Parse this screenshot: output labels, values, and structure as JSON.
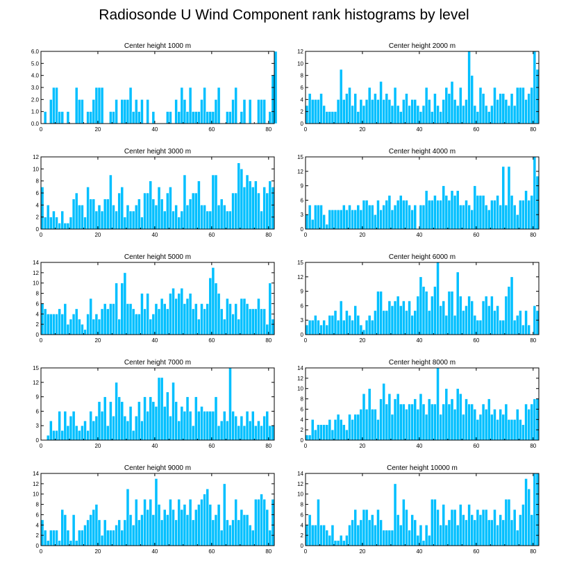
{
  "figure_title": "Radiosonde U Wind Component rank histograms by level",
  "colors": {
    "bar": "#00bfff",
    "bar_edge": "#ffffff",
    "axis": "#000000"
  },
  "chart_data": [
    {
      "type": "bar",
      "title": "Center height 1000 m",
      "xlim": [
        0,
        82
      ],
      "ylim": [
        0,
        6.0
      ],
      "xticks": [
        0,
        20,
        40,
        60,
        80
      ],
      "yticks": [
        {
          "v": 0,
          "t": "0.0"
        },
        {
          "v": 1,
          "t": "1.0"
        },
        {
          "v": 2,
          "t": "2.0"
        },
        {
          "v": 3,
          "t": "3.0"
        },
        {
          "v": 4,
          "t": "4.0"
        },
        {
          "v": 5,
          "t": "5.0"
        },
        {
          "v": 6,
          "t": "6.0"
        }
      ],
      "values": [
        0,
        1,
        0,
        2,
        3,
        3,
        1,
        1,
        0,
        1,
        0,
        0,
        3,
        2,
        2,
        0,
        1,
        1,
        2,
        3,
        3,
        3,
        0,
        0,
        1,
        1,
        2,
        0,
        2,
        2,
        2,
        3,
        1,
        2,
        1,
        2,
        0,
        2,
        0,
        1,
        0,
        0,
        0,
        0,
        1,
        1,
        0,
        2,
        1,
        3,
        2,
        1,
        3,
        1,
        1,
        1,
        2,
        3,
        1,
        1,
        1,
        2,
        3,
        0,
        0,
        1,
        1,
        2,
        3,
        0,
        1,
        2,
        0,
        2,
        0,
        0,
        2,
        2,
        2,
        0,
        1,
        4,
        6
      ]
    },
    {
      "type": "bar",
      "title": "Center height 2000 m",
      "xlim": [
        0,
        82
      ],
      "ylim": [
        0,
        12
      ],
      "xticks": [
        0,
        20,
        40,
        60,
        80
      ],
      "yticks": [
        {
          "v": 0,
          "t": "0"
        },
        {
          "v": 2,
          "t": "2"
        },
        {
          "v": 4,
          "t": "4"
        },
        {
          "v": 6,
          "t": "6"
        },
        {
          "v": 8,
          "t": "8"
        },
        {
          "v": 10,
          "t": "10"
        },
        {
          "v": 12,
          "t": "12"
        }
      ],
      "values": [
        3,
        5,
        4,
        4,
        4,
        5,
        3,
        2,
        2,
        2,
        2,
        4,
        9,
        4,
        5,
        6,
        3,
        5,
        2,
        4,
        3,
        4,
        6,
        4,
        5,
        4,
        7,
        4,
        5,
        4,
        3,
        6,
        3,
        2,
        4,
        5,
        3,
        4,
        4,
        3,
        2,
        3,
        6,
        4,
        2,
        5,
        3,
        2,
        4,
        6,
        5,
        7,
        4,
        3,
        6,
        3,
        4,
        12,
        8,
        3,
        2,
        6,
        5,
        3,
        2,
        3,
        6,
        4,
        5,
        5,
        4,
        3,
        5,
        3,
        6,
        6,
        6,
        4,
        5,
        6,
        12,
        9
      ]
    },
    {
      "type": "bar",
      "title": "Center height 3000 m",
      "xlim": [
        0,
        82
      ],
      "ylim": [
        0,
        12
      ],
      "xticks": [
        0,
        20,
        40,
        60,
        80
      ],
      "yticks": [
        {
          "v": 0,
          "t": "0"
        },
        {
          "v": 2,
          "t": "2"
        },
        {
          "v": 4,
          "t": "4"
        },
        {
          "v": 6,
          "t": "6"
        },
        {
          "v": 8,
          "t": "8"
        },
        {
          "v": 10,
          "t": "10"
        },
        {
          "v": 12,
          "t": "12"
        }
      ],
      "values": [
        7,
        2,
        4,
        2,
        3,
        2,
        1,
        3,
        1,
        1,
        2,
        5,
        6,
        4,
        4,
        2,
        7,
        5,
        5,
        3,
        4,
        3,
        5,
        5,
        9,
        4,
        3,
        6,
        7,
        2,
        4,
        3,
        3,
        4,
        5,
        2,
        6,
        6,
        8,
        5,
        4,
        7,
        5,
        3,
        6,
        7,
        3,
        4,
        2,
        3,
        9,
        4,
        5,
        6,
        6,
        8,
        4,
        4,
        3,
        3,
        9,
        9,
        4,
        5,
        4,
        3,
        3,
        6,
        6,
        11,
        10,
        7,
        9,
        8,
        7,
        8,
        6,
        3,
        7,
        6,
        8,
        7
      ]
    },
    {
      "type": "bar",
      "title": "Center height 4000 m",
      "xlim": [
        0,
        82
      ],
      "ylim": [
        0,
        15
      ],
      "xticks": [
        0,
        20,
        40,
        60,
        80
      ],
      "yticks": [
        {
          "v": 0,
          "t": "0"
        },
        {
          "v": 3,
          "t": "3"
        },
        {
          "v": 6,
          "t": "6"
        },
        {
          "v": 9,
          "t": "9"
        },
        {
          "v": 12,
          "t": "12"
        },
        {
          "v": 15,
          "t": "15"
        }
      ],
      "values": [
        3,
        5,
        2,
        5,
        5,
        5,
        3,
        1,
        4,
        4,
        4,
        4,
        4,
        5,
        4,
        5,
        4,
        4,
        5,
        4,
        6,
        6,
        5,
        5,
        3,
        6,
        4,
        5,
        6,
        7,
        4,
        5,
        6,
        7,
        6,
        6,
        5,
        4,
        5,
        0,
        5,
        5,
        8,
        6,
        6,
        7,
        6,
        6,
        9,
        7,
        6,
        8,
        7,
        8,
        5,
        5,
        6,
        5,
        4,
        9,
        7,
        7,
        7,
        5,
        4,
        6,
        6,
        7,
        5,
        13,
        5,
        13,
        7,
        5,
        3,
        6,
        6,
        8,
        6,
        7,
        15,
        11
      ]
    },
    {
      "type": "bar",
      "title": "Center height 5000 m",
      "xlim": [
        0,
        82
      ],
      "ylim": [
        0,
        14
      ],
      "xticks": [
        0,
        20,
        40,
        60,
        80
      ],
      "yticks": [
        {
          "v": 0,
          "t": "0"
        },
        {
          "v": 2,
          "t": "2"
        },
        {
          "v": 4,
          "t": "4"
        },
        {
          "v": 6,
          "t": "6"
        },
        {
          "v": 8,
          "t": "8"
        },
        {
          "v": 10,
          "t": "10"
        },
        {
          "v": 12,
          "t": "12"
        },
        {
          "v": 14,
          "t": "14"
        }
      ],
      "values": [
        6,
        5,
        4,
        4,
        4,
        4,
        5,
        4,
        6,
        2,
        3,
        4,
        5,
        3,
        2,
        1,
        4,
        7,
        3,
        4,
        3,
        5,
        6,
        5,
        6,
        6,
        10,
        3,
        10,
        12,
        6,
        6,
        5,
        4,
        4,
        8,
        5,
        8,
        3,
        4,
        6,
        5,
        7,
        6,
        5,
        8,
        9,
        7,
        8,
        9,
        6,
        7,
        8,
        5,
        6,
        3,
        6,
        5,
        6,
        11,
        13,
        10,
        8,
        5,
        3,
        7,
        6,
        4,
        6,
        3,
        7,
        7,
        6,
        5,
        5,
        5,
        7,
        5,
        5,
        2,
        10,
        3
      ]
    },
    {
      "type": "bar",
      "title": "Center height 6000 m",
      "xlim": [
        0,
        82
      ],
      "ylim": [
        0,
        15
      ],
      "xticks": [
        0,
        20,
        40,
        60,
        80
      ],
      "yticks": [
        {
          "v": 0,
          "t": "0"
        },
        {
          "v": 3,
          "t": "3"
        },
        {
          "v": 6,
          "t": "6"
        },
        {
          "v": 9,
          "t": "9"
        },
        {
          "v": 12,
          "t": "12"
        },
        {
          "v": 15,
          "t": "15"
        }
      ],
      "values": [
        2,
        3,
        3,
        4,
        3,
        2,
        3,
        2,
        4,
        4,
        5,
        3,
        7,
        3,
        5,
        4,
        3,
        6,
        4,
        2,
        1,
        3,
        4,
        3,
        5,
        9,
        9,
        5,
        5,
        7,
        6,
        7,
        8,
        6,
        7,
        5,
        7,
        4,
        5,
        8,
        12,
        10,
        9,
        5,
        8,
        10,
        15,
        6,
        7,
        4,
        9,
        9,
        4,
        13,
        8,
        5,
        6,
        8,
        7,
        4,
        3,
        3,
        7,
        8,
        6,
        8,
        5,
        6,
        3,
        3,
        8,
        10,
        12,
        3,
        4,
        5,
        2,
        5,
        2,
        0,
        6,
        5
      ]
    },
    {
      "type": "bar",
      "title": "Center height 7000 m",
      "xlim": [
        0,
        82
      ],
      "ylim": [
        0,
        15
      ],
      "xticks": [
        0,
        20,
        40,
        60,
        80
      ],
      "yticks": [
        {
          "v": 0,
          "t": "0"
        },
        {
          "v": 3,
          "t": "3"
        },
        {
          "v": 6,
          "t": "6"
        },
        {
          "v": 9,
          "t": "9"
        },
        {
          "v": 12,
          "t": "12"
        },
        {
          "v": 15,
          "t": "15"
        }
      ],
      "values": [
        0,
        0,
        1,
        4,
        2,
        2,
        6,
        2,
        6,
        3,
        5,
        6,
        3,
        2,
        3,
        4,
        2,
        6,
        4,
        5,
        8,
        6,
        9,
        3,
        8,
        5,
        12,
        9,
        8,
        5,
        4,
        7,
        2,
        5,
        8,
        4,
        9,
        6,
        9,
        8,
        7,
        13,
        13,
        7,
        10,
        5,
        12,
        8,
        4,
        7,
        6,
        9,
        6,
        3,
        9,
        6,
        7,
        6,
        6,
        6,
        6,
        9,
        3,
        4,
        6,
        4,
        15,
        6,
        5,
        3,
        5,
        3,
        6,
        4,
        6,
        3,
        4,
        3,
        5,
        6,
        3,
        3
      ]
    },
    {
      "type": "bar",
      "title": "Center height 8000 m",
      "xlim": [
        0,
        82
      ],
      "ylim": [
        0,
        14
      ],
      "xticks": [
        0,
        20,
        40,
        60,
        80
      ],
      "yticks": [
        {
          "v": 0,
          "t": "0"
        },
        {
          "v": 2,
          "t": "2"
        },
        {
          "v": 4,
          "t": "4"
        },
        {
          "v": 6,
          "t": "6"
        },
        {
          "v": 8,
          "t": "8"
        },
        {
          "v": 10,
          "t": "10"
        },
        {
          "v": 12,
          "t": "12"
        },
        {
          "v": 14,
          "t": "14"
        }
      ],
      "values": [
        1,
        1,
        4,
        2,
        3,
        3,
        3,
        3,
        4,
        2,
        4,
        5,
        4,
        3,
        2,
        5,
        4,
        5,
        5,
        6,
        9,
        6,
        10,
        6,
        6,
        4,
        8,
        11,
        7,
        9,
        5,
        8,
        9,
        7,
        7,
        6,
        7,
        7,
        8,
        6,
        9,
        7,
        5,
        8,
        7,
        7,
        14,
        5,
        7,
        10,
        7,
        8,
        6,
        10,
        9,
        5,
        8,
        7,
        7,
        6,
        4,
        5,
        7,
        6,
        8,
        5,
        6,
        4,
        6,
        5,
        7,
        4,
        4,
        4,
        6,
        4,
        3,
        7,
        6,
        7,
        8,
        8
      ]
    },
    {
      "type": "bar",
      "title": "Center height 9000 m",
      "xlim": [
        0,
        82
      ],
      "ylim": [
        0,
        14
      ],
      "xticks": [
        0,
        20,
        40,
        60,
        80
      ],
      "yticks": [
        {
          "v": 0,
          "t": "0"
        },
        {
          "v": 2,
          "t": "2"
        },
        {
          "v": 4,
          "t": "4"
        },
        {
          "v": 6,
          "t": "6"
        },
        {
          "v": 8,
          "t": "8"
        },
        {
          "v": 10,
          "t": "10"
        },
        {
          "v": 12,
          "t": "12"
        },
        {
          "v": 14,
          "t": "14"
        }
      ],
      "values": [
        5,
        3,
        1,
        3,
        3,
        3,
        1,
        7,
        6,
        3,
        1,
        6,
        1,
        3,
        3,
        4,
        5,
        6,
        7,
        8,
        5,
        2,
        5,
        3,
        3,
        3,
        4,
        5,
        3,
        5,
        11,
        6,
        4,
        9,
        5,
        6,
        9,
        7,
        9,
        6,
        13,
        8,
        5,
        7,
        6,
        9,
        7,
        5,
        9,
        7,
        8,
        6,
        9,
        5,
        7,
        8,
        9,
        10,
        11,
        8,
        5,
        6,
        8,
        3,
        12,
        5,
        4,
        5,
        9,
        5,
        7,
        6,
        6,
        4,
        3,
        9,
        9,
        10,
        9,
        7,
        3,
        9
      ]
    },
    {
      "type": "bar",
      "title": "Center height 10000 m",
      "xlim": [
        0,
        82
      ],
      "ylim": [
        0,
        14
      ],
      "xticks": [
        0,
        20,
        40,
        60,
        80
      ],
      "yticks": [
        {
          "v": 0,
          "t": "0"
        },
        {
          "v": 2,
          "t": "2"
        },
        {
          "v": 4,
          "t": "4"
        },
        {
          "v": 6,
          "t": "6"
        },
        {
          "v": 8,
          "t": "8"
        },
        {
          "v": 10,
          "t": "10"
        },
        {
          "v": 12,
          "t": "12"
        },
        {
          "v": 14,
          "t": "14"
        }
      ],
      "values": [
        4,
        6,
        4,
        4,
        9,
        4,
        4,
        3,
        2,
        4,
        1,
        1,
        2,
        1,
        2,
        4,
        5,
        7,
        4,
        5,
        7,
        7,
        5,
        6,
        4,
        7,
        5,
        3,
        3,
        3,
        3,
        12,
        6,
        4,
        9,
        7,
        3,
        6,
        5,
        2,
        4,
        1,
        4,
        2,
        9,
        9,
        7,
        4,
        8,
        4,
        5,
        7,
        7,
        4,
        8,
        6,
        5,
        8,
        6,
        5,
        7,
        6,
        7,
        7,
        5,
        5,
        7,
        4,
        6,
        5,
        9,
        9,
        5,
        7,
        3,
        6,
        8,
        13,
        11,
        6,
        14,
        14
      ]
    }
  ]
}
